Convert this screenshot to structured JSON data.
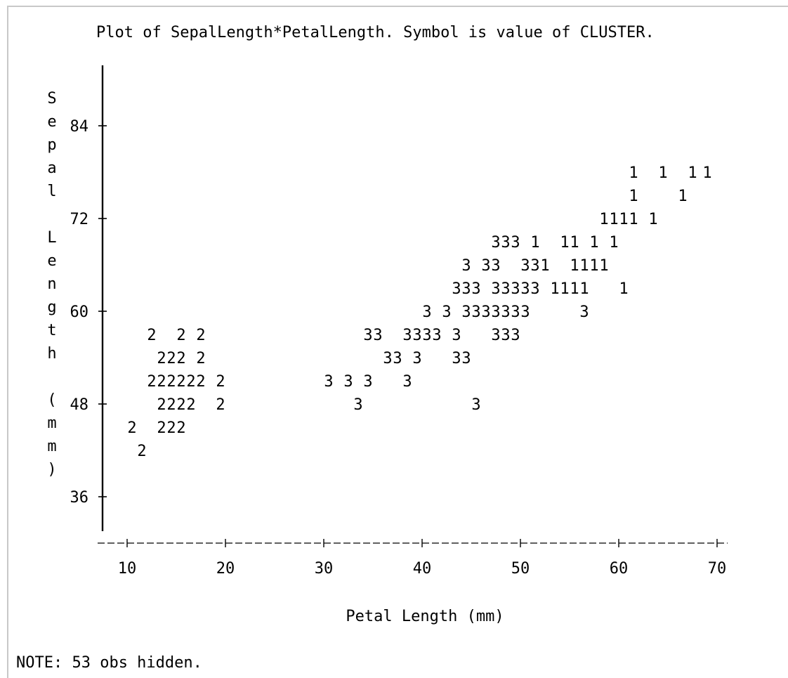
{
  "chart_data": {
    "type": "scatter",
    "title": "Plot of SepalLength*PetalLength.  Symbol is value of CLUSTER.",
    "xlabel": "Petal Length (mm)",
    "ylabel_chars": [
      "S",
      "e",
      "p",
      "a",
      "l",
      "",
      "L",
      "e",
      "n",
      "g",
      "t",
      "h",
      "",
      "(",
      "m",
      "m",
      ")"
    ],
    "xlim": [
      7.4,
      72.4
    ],
    "ylim": [
      31.2,
      91.2
    ],
    "x_ticks": [
      10,
      20,
      30,
      40,
      50,
      60,
      70
    ],
    "y_ticks": [
      36,
      48,
      60,
      72,
      84
    ],
    "x_tick_labels": [
      "10",
      "20",
      "30",
      "40",
      "50",
      "60",
      "70"
    ],
    "y_tick_labels": [
      "36",
      "48",
      "60",
      "72",
      "84"
    ],
    "legend": "none",
    "grid": false,
    "note": "NOTE: 53 obs hidden.",
    "points": [
      {
        "x": 61.5,
        "y": 78,
        "c": "1"
      },
      {
        "x": 64.5,
        "y": 78,
        "c": "1"
      },
      {
        "x": 67.5,
        "y": 78,
        "c": "1"
      },
      {
        "x": 69,
        "y": 78,
        "c": "1"
      },
      {
        "x": 61.5,
        "y": 75,
        "c": "1"
      },
      {
        "x": 66.5,
        "y": 75,
        "c": "1"
      },
      {
        "x": 58.5,
        "y": 72,
        "c": "1"
      },
      {
        "x": 59.5,
        "y": 72,
        "c": "1"
      },
      {
        "x": 60.5,
        "y": 72,
        "c": "1"
      },
      {
        "x": 61.5,
        "y": 72,
        "c": "1"
      },
      {
        "x": 63.5,
        "y": 72,
        "c": "1"
      },
      {
        "x": 47.5,
        "y": 69,
        "c": "3"
      },
      {
        "x": 48.5,
        "y": 69,
        "c": "3"
      },
      {
        "x": 49.5,
        "y": 69,
        "c": "3"
      },
      {
        "x": 51.5,
        "y": 69,
        "c": "1"
      },
      {
        "x": 54.5,
        "y": 69,
        "c": "1"
      },
      {
        "x": 55.5,
        "y": 69,
        "c": "1"
      },
      {
        "x": 57.5,
        "y": 69,
        "c": "1"
      },
      {
        "x": 59.5,
        "y": 69,
        "c": "1"
      },
      {
        "x": 44.5,
        "y": 66,
        "c": "3"
      },
      {
        "x": 46.5,
        "y": 66,
        "c": "3"
      },
      {
        "x": 47.5,
        "y": 66,
        "c": "3"
      },
      {
        "x": 50.5,
        "y": 66,
        "c": "3"
      },
      {
        "x": 51.5,
        "y": 66,
        "c": "3"
      },
      {
        "x": 52.5,
        "y": 66,
        "c": "1"
      },
      {
        "x": 55.5,
        "y": 66,
        "c": "1"
      },
      {
        "x": 56.5,
        "y": 66,
        "c": "1"
      },
      {
        "x": 57.5,
        "y": 66,
        "c": "1"
      },
      {
        "x": 58.5,
        "y": 66,
        "c": "1"
      },
      {
        "x": 43.5,
        "y": 63,
        "c": "3"
      },
      {
        "x": 44.5,
        "y": 63,
        "c": "3"
      },
      {
        "x": 45.5,
        "y": 63,
        "c": "3"
      },
      {
        "x": 47.5,
        "y": 63,
        "c": "3"
      },
      {
        "x": 48.5,
        "y": 63,
        "c": "3"
      },
      {
        "x": 49.5,
        "y": 63,
        "c": "3"
      },
      {
        "x": 50.5,
        "y": 63,
        "c": "3"
      },
      {
        "x": 51.5,
        "y": 63,
        "c": "3"
      },
      {
        "x": 53.5,
        "y": 63,
        "c": "1"
      },
      {
        "x": 54.5,
        "y": 63,
        "c": "1"
      },
      {
        "x": 55.5,
        "y": 63,
        "c": "1"
      },
      {
        "x": 56.5,
        "y": 63,
        "c": "1"
      },
      {
        "x": 60.5,
        "y": 63,
        "c": "1"
      },
      {
        "x": 40.5,
        "y": 60,
        "c": "3"
      },
      {
        "x": 42.5,
        "y": 60,
        "c": "3"
      },
      {
        "x": 44.5,
        "y": 60,
        "c": "3"
      },
      {
        "x": 45.5,
        "y": 60,
        "c": "3"
      },
      {
        "x": 46.5,
        "y": 60,
        "c": "3"
      },
      {
        "x": 47.5,
        "y": 60,
        "c": "3"
      },
      {
        "x": 48.5,
        "y": 60,
        "c": "3"
      },
      {
        "x": 49.5,
        "y": 60,
        "c": "3"
      },
      {
        "x": 50.5,
        "y": 60,
        "c": "3"
      },
      {
        "x": 56.5,
        "y": 60,
        "c": "3"
      },
      {
        "x": 12.5,
        "y": 57,
        "c": "2"
      },
      {
        "x": 15.5,
        "y": 57,
        "c": "2"
      },
      {
        "x": 17.5,
        "y": 57,
        "c": "2"
      },
      {
        "x": 34.5,
        "y": 57,
        "c": "3"
      },
      {
        "x": 35.5,
        "y": 57,
        "c": "3"
      },
      {
        "x": 38.5,
        "y": 57,
        "c": "3"
      },
      {
        "x": 39.5,
        "y": 57,
        "c": "3"
      },
      {
        "x": 40.5,
        "y": 57,
        "c": "3"
      },
      {
        "x": 41.5,
        "y": 57,
        "c": "3"
      },
      {
        "x": 43.5,
        "y": 57,
        "c": "3"
      },
      {
        "x": 47.5,
        "y": 57,
        "c": "3"
      },
      {
        "x": 48.5,
        "y": 57,
        "c": "3"
      },
      {
        "x": 49.5,
        "y": 57,
        "c": "3"
      },
      {
        "x": 13.5,
        "y": 54,
        "c": "2"
      },
      {
        "x": 14.5,
        "y": 54,
        "c": "2"
      },
      {
        "x": 15.5,
        "y": 54,
        "c": "2"
      },
      {
        "x": 17.5,
        "y": 54,
        "c": "2"
      },
      {
        "x": 36.5,
        "y": 54,
        "c": "3"
      },
      {
        "x": 37.5,
        "y": 54,
        "c": "3"
      },
      {
        "x": 39.5,
        "y": 54,
        "c": "3"
      },
      {
        "x": 43.5,
        "y": 54,
        "c": "3"
      },
      {
        "x": 44.5,
        "y": 54,
        "c": "3"
      },
      {
        "x": 12.5,
        "y": 51,
        "c": "2"
      },
      {
        "x": 13.5,
        "y": 51,
        "c": "2"
      },
      {
        "x": 14.5,
        "y": 51,
        "c": "2"
      },
      {
        "x": 15.5,
        "y": 51,
        "c": "2"
      },
      {
        "x": 16.5,
        "y": 51,
        "c": "2"
      },
      {
        "x": 17.5,
        "y": 51,
        "c": "2"
      },
      {
        "x": 19.5,
        "y": 51,
        "c": "2"
      },
      {
        "x": 30.5,
        "y": 51,
        "c": "3"
      },
      {
        "x": 32.5,
        "y": 51,
        "c": "3"
      },
      {
        "x": 34.5,
        "y": 51,
        "c": "3"
      },
      {
        "x": 38.5,
        "y": 51,
        "c": "3"
      },
      {
        "x": 13.5,
        "y": 48,
        "c": "2"
      },
      {
        "x": 14.5,
        "y": 48,
        "c": "2"
      },
      {
        "x": 15.5,
        "y": 48,
        "c": "2"
      },
      {
        "x": 16.5,
        "y": 48,
        "c": "2"
      },
      {
        "x": 19.5,
        "y": 48,
        "c": "2"
      },
      {
        "x": 33.5,
        "y": 48,
        "c": "3"
      },
      {
        "x": 45.5,
        "y": 48,
        "c": "3"
      },
      {
        "x": 10.5,
        "y": 45,
        "c": "2"
      },
      {
        "x": 13.5,
        "y": 45,
        "c": "2"
      },
      {
        "x": 14.5,
        "y": 45,
        "c": "2"
      },
      {
        "x": 15.5,
        "y": 45,
        "c": "2"
      },
      {
        "x": 11.5,
        "y": 42,
        "c": "2"
      }
    ]
  }
}
